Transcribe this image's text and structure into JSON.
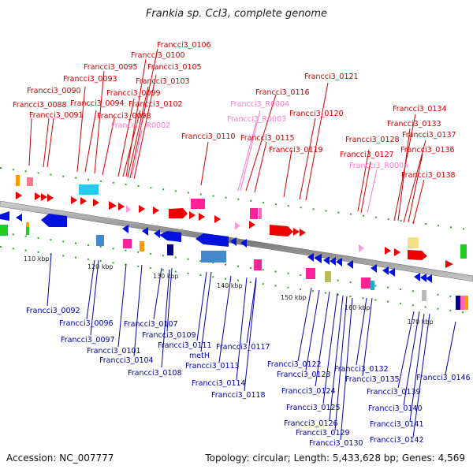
{
  "title": "Frankia sp. CcI3, complete genome",
  "footer": {
    "accession": "Accession: NC_007777",
    "summary": "Topology: circular; Length: 5,433,628 bp; Genes: 4,569"
  },
  "ticks": [
    {
      "label": "110 kbp"
    },
    {
      "label": "120 kbp"
    },
    {
      "label": "130 kbp"
    },
    {
      "label": "140 kbp"
    },
    {
      "label": "150 kbp"
    },
    {
      "label": "160 kbp"
    },
    {
      "label": "170 kbp"
    }
  ],
  "top_labels": [
    {
      "text": "Francci3_0106",
      "color": "red"
    },
    {
      "text": "Francci3_0100",
      "color": "red"
    },
    {
      "text": "Francci3_0095",
      "color": "red"
    },
    {
      "text": "Francci3_0105",
      "color": "red"
    },
    {
      "text": "Francci3_0093",
      "color": "red"
    },
    {
      "text": "Francci3_0103",
      "color": "red"
    },
    {
      "text": "Francci3_0090",
      "color": "red"
    },
    {
      "text": "Francci3_0099",
      "color": "red"
    },
    {
      "text": "Francci3_0088",
      "color": "red"
    },
    {
      "text": "Francci3_0094",
      "color": "red"
    },
    {
      "text": "Francci3_0102",
      "color": "red"
    },
    {
      "text": "Francci3_0091",
      "color": "red"
    },
    {
      "text": "Francci3_0098",
      "color": "red"
    },
    {
      "text": "Francci3_R0002",
      "color": "pink"
    },
    {
      "text": "Francci3_0110",
      "color": "red"
    },
    {
      "text": "Francci3_0116",
      "color": "red"
    },
    {
      "text": "Francci3_R0004",
      "color": "pink"
    },
    {
      "text": "Francci3_R0003",
      "color": "pink"
    },
    {
      "text": "Francci3_0115",
      "color": "red"
    },
    {
      "text": "Francci3_0119",
      "color": "red"
    },
    {
      "text": "Francci3_0121",
      "color": "red"
    },
    {
      "text": "Francci3_0120",
      "color": "red"
    },
    {
      "text": "Francci3_0134",
      "color": "red"
    },
    {
      "text": "Francci3_0133",
      "color": "red"
    },
    {
      "text": "Francci3_0137",
      "color": "red"
    },
    {
      "text": "Francci3_0128",
      "color": "red"
    },
    {
      "text": "Francci3_0136",
      "color": "red"
    },
    {
      "text": "Francci3_0127",
      "color": "red"
    },
    {
      "text": "Francci3_R0005",
      "color": "pink"
    },
    {
      "text": "Francci3_0138",
      "color": "red"
    }
  ],
  "bottom_labels": [
    {
      "text": "Francci3_0092"
    },
    {
      "text": "Francci3_0096"
    },
    {
      "text": "Francci3_0097"
    },
    {
      "text": "Francci3_0107"
    },
    {
      "text": "Francci3_0101"
    },
    {
      "text": "Francci3_0109"
    },
    {
      "text": "Francci3_0104"
    },
    {
      "text": "Francci3_0111"
    },
    {
      "text": "Francci3_0117"
    },
    {
      "text": "metH"
    },
    {
      "text": "Francci3_0108"
    },
    {
      "text": "Francci3_0113"
    },
    {
      "text": "Francci3_0114"
    },
    {
      "text": "Francci3_0118"
    },
    {
      "text": "Francci3_0122"
    },
    {
      "text": "Francci3_0123"
    },
    {
      "text": "Francci3_0132"
    },
    {
      "text": "Francci3_0135"
    },
    {
      "text": "Francci3_0146"
    },
    {
      "text": "Francci3_0124"
    },
    {
      "text": "Francci3_0139"
    },
    {
      "text": "Francci3_0125"
    },
    {
      "text": "Francci3_0140"
    },
    {
      "text": "Francci3_0126"
    },
    {
      "text": "Francci3_0141"
    },
    {
      "text": "Francci3_0129"
    },
    {
      "text": "Francci3_0142"
    },
    {
      "text": "Francci3_0130"
    }
  ],
  "colors": {
    "forward_label": "#cc0000",
    "rna_label": "#ff77cc",
    "reverse_label": "#0000aa",
    "backbone": "#888888",
    "tick_marks": "#22aa22"
  }
}
